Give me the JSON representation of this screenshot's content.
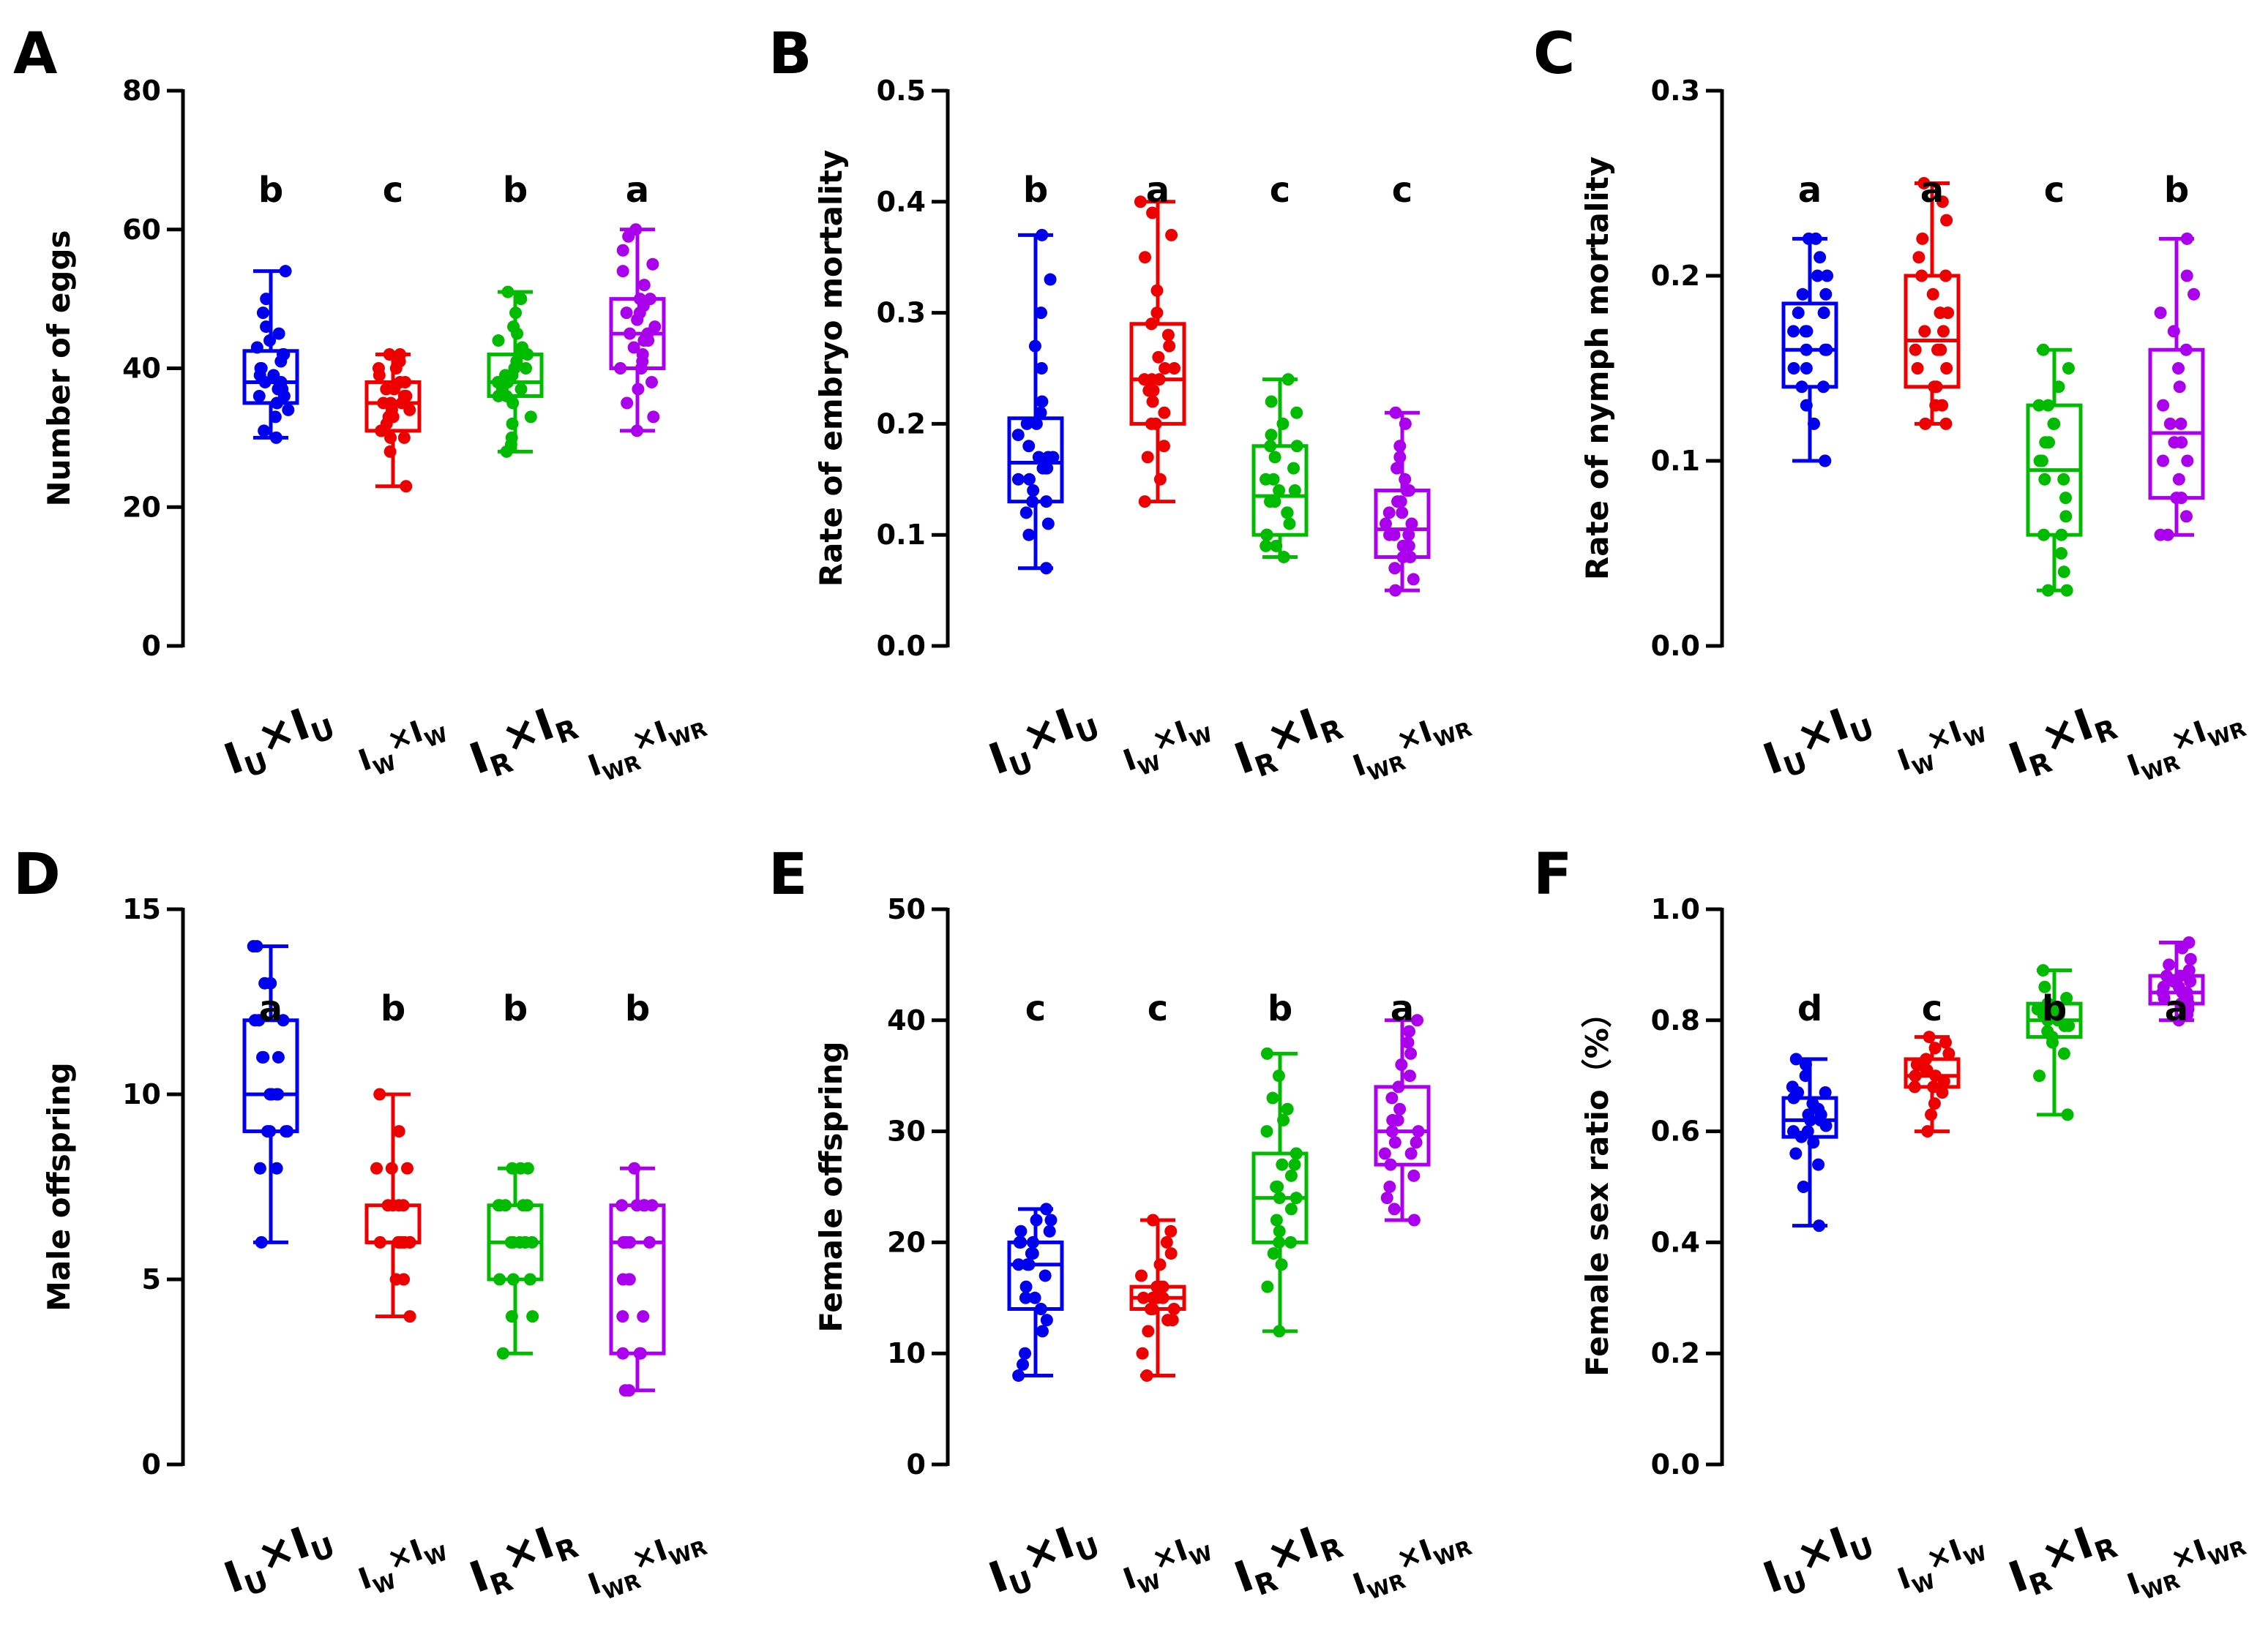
{
  "groups": [
    {
      "main": "I",
      "sub": "U",
      "mid": "×",
      "main2": "I",
      "sub2": "U",
      "style": "large"
    },
    {
      "main": "I",
      "sub": "W",
      "mid": "×",
      "main2": "I",
      "sub2": "W",
      "style": "small"
    },
    {
      "main": "I",
      "sub": "R",
      "mid": "×",
      "main2": "I",
      "sub2": "R",
      "style": "large"
    },
    {
      "main": "I",
      "sub": "WR",
      "mid": "×",
      "main2": "I",
      "sub2": "WR",
      "style": "small"
    }
  ],
  "colors": [
    "#0000ee",
    "#ee0000",
    "#00bb00",
    "#aa00ee"
  ],
  "chart_data": [
    {
      "panel": "A",
      "type": "box",
      "ylabel": "Number of eggs",
      "ylim": [
        0,
        80
      ],
      "yticks": [
        0,
        20,
        40,
        60,
        80
      ],
      "tick_labels": [
        "0",
        "20",
        "40",
        "60",
        "80"
      ],
      "categories": [
        "IU×IU",
        "IW×IW",
        "IR×IR",
        "IWR×IWR"
      ],
      "letters": [
        "b",
        "c",
        "b",
        "a"
      ],
      "series": [
        {
          "min": 30,
          "q1": 35,
          "median": 38,
          "q3": 42.5,
          "max": 54,
          "points": [
            30,
            31,
            33,
            34,
            35,
            35,
            36,
            36,
            37,
            37,
            38,
            38,
            38,
            39,
            39,
            40,
            40,
            41,
            42,
            42,
            43,
            44,
            45,
            46,
            48,
            50,
            54
          ]
        },
        {
          "min": 23,
          "q1": 31,
          "median": 35,
          "q3": 38,
          "max": 42,
          "points": [
            23,
            28,
            30,
            30,
            31,
            31,
            32,
            33,
            33,
            34,
            34,
            35,
            35,
            35,
            36,
            36,
            37,
            37,
            38,
            38,
            39,
            40,
            40,
            41,
            42,
            42
          ]
        },
        {
          "min": 28,
          "q1": 36,
          "median": 38,
          "q3": 42,
          "max": 51,
          "points": [
            28,
            29,
            30,
            32,
            33,
            35,
            36,
            36,
            37,
            37,
            38,
            38,
            38,
            39,
            39,
            40,
            40,
            41,
            42,
            42,
            43,
            44,
            45,
            46,
            48,
            50,
            51
          ]
        },
        {
          "min": 31,
          "q1": 40,
          "median": 45,
          "q3": 50,
          "max": 60,
          "points": [
            31,
            33,
            35,
            37,
            38,
            40,
            40,
            41,
            42,
            43,
            44,
            44,
            45,
            45,
            46,
            47,
            48,
            48,
            49,
            50,
            50,
            52,
            54,
            55,
            57,
            59,
            60
          ]
        }
      ]
    },
    {
      "panel": "B",
      "type": "box",
      "ylabel": "Rate of embryo mortality",
      "ylim": [
        0,
        0.5
      ],
      "yticks": [
        0,
        0.1,
        0.2,
        0.3,
        0.4,
        0.5
      ],
      "tick_labels": [
        "0.0",
        "0.1",
        "0.2",
        "0.3",
        "0.4",
        "0.5"
      ],
      "categories": [
        "IU×IU",
        "IW×IW",
        "IR×IR",
        "IWR×IWR"
      ],
      "letters": [
        "b",
        "a",
        "c",
        "c"
      ],
      "series": [
        {
          "min": 0.07,
          "q1": 0.13,
          "median": 0.165,
          "q3": 0.205,
          "max": 0.37,
          "points": [
            0.07,
            0.1,
            0.11,
            0.12,
            0.13,
            0.13,
            0.14,
            0.15,
            0.15,
            0.16,
            0.16,
            0.16,
            0.17,
            0.17,
            0.17,
            0.18,
            0.19,
            0.2,
            0.2,
            0.21,
            0.22,
            0.25,
            0.27,
            0.3,
            0.33,
            0.37
          ]
        },
        {
          "min": 0.13,
          "q1": 0.2,
          "median": 0.24,
          "q3": 0.29,
          "max": 0.4,
          "points": [
            0.13,
            0.15,
            0.17,
            0.18,
            0.2,
            0.2,
            0.21,
            0.22,
            0.23,
            0.23,
            0.24,
            0.24,
            0.24,
            0.25,
            0.25,
            0.26,
            0.27,
            0.28,
            0.29,
            0.3,
            0.32,
            0.35,
            0.37,
            0.39,
            0.4
          ]
        },
        {
          "min": 0.08,
          "q1": 0.1,
          "median": 0.135,
          "q3": 0.18,
          "max": 0.24,
          "points": [
            0.08,
            0.09,
            0.09,
            0.1,
            0.1,
            0.1,
            0.11,
            0.12,
            0.12,
            0.13,
            0.13,
            0.14,
            0.14,
            0.15,
            0.15,
            0.16,
            0.17,
            0.18,
            0.18,
            0.19,
            0.2,
            0.21,
            0.22,
            0.24
          ]
        },
        {
          "min": 0.05,
          "q1": 0.08,
          "median": 0.105,
          "q3": 0.14,
          "max": 0.21,
          "points": [
            0.05,
            0.06,
            0.07,
            0.08,
            0.08,
            0.09,
            0.09,
            0.1,
            0.1,
            0.1,
            0.11,
            0.11,
            0.12,
            0.12,
            0.13,
            0.13,
            0.14,
            0.14,
            0.15,
            0.16,
            0.17,
            0.18,
            0.2,
            0.21
          ]
        }
      ]
    },
    {
      "panel": "C",
      "type": "box",
      "ylabel": "Rate of nymph mortality",
      "ylim": [
        0,
        0.3
      ],
      "yticks": [
        0,
        0.1,
        0.2,
        0.3
      ],
      "tick_labels": [
        "0.0",
        "0.1",
        "0.2",
        "0.3"
      ],
      "categories": [
        "IU×IU",
        "IW×IW",
        "IR×IR",
        "IWR×IWR"
      ],
      "letters": [
        "a",
        "a",
        "c",
        "b"
      ],
      "series": [
        {
          "min": 0.1,
          "q1": 0.14,
          "median": 0.16,
          "q3": 0.185,
          "max": 0.22,
          "points": [
            0.1,
            0.1,
            0.12,
            0.13,
            0.14,
            0.14,
            0.15,
            0.15,
            0.16,
            0.16,
            0.16,
            0.17,
            0.17,
            0.17,
            0.18,
            0.18,
            0.19,
            0.19,
            0.2,
            0.2,
            0.21,
            0.22,
            0.22
          ]
        },
        {
          "min": 0.12,
          "q1": 0.14,
          "median": 0.165,
          "q3": 0.2,
          "max": 0.25,
          "points": [
            0.12,
            0.12,
            0.13,
            0.13,
            0.14,
            0.14,
            0.15,
            0.15,
            0.16,
            0.16,
            0.16,
            0.17,
            0.17,
            0.18,
            0.18,
            0.19,
            0.2,
            0.2,
            0.21,
            0.22,
            0.23,
            0.24,
            0.25
          ]
        },
        {
          "min": 0.03,
          "q1": 0.06,
          "median": 0.095,
          "q3": 0.13,
          "max": 0.16,
          "points": [
            0.03,
            0.03,
            0.04,
            0.05,
            0.06,
            0.06,
            0.07,
            0.08,
            0.09,
            0.09,
            0.1,
            0.1,
            0.11,
            0.11,
            0.12,
            0.12,
            0.13,
            0.13,
            0.14,
            0.15,
            0.16
          ]
        },
        {
          "min": 0.06,
          "q1": 0.08,
          "median": 0.115,
          "q3": 0.16,
          "max": 0.22,
          "points": [
            0.06,
            0.06,
            0.07,
            0.08,
            0.08,
            0.09,
            0.1,
            0.1,
            0.11,
            0.11,
            0.12,
            0.12,
            0.13,
            0.14,
            0.15,
            0.16,
            0.17,
            0.18,
            0.19,
            0.2,
            0.22
          ]
        }
      ]
    },
    {
      "panel": "D",
      "type": "box",
      "ylabel": "Male offspring",
      "ylim": [
        0,
        15
      ],
      "yticks": [
        0,
        5,
        10,
        15
      ],
      "tick_labels": [
        "0",
        "5",
        "10",
        "15"
      ],
      "categories": [
        "IU×IU",
        "IW×IW",
        "IR×IR",
        "IWR×IWR"
      ],
      "letters": [
        "a",
        "b",
        "b",
        "b"
      ],
      "series": [
        {
          "min": 6,
          "q1": 9,
          "median": 10,
          "q3": 12,
          "max": 14,
          "points": [
            6,
            8,
            8,
            9,
            9,
            9,
            9,
            10,
            10,
            10,
            10,
            10,
            10,
            11,
            11,
            11,
            12,
            12,
            12,
            13,
            13,
            14,
            14
          ]
        },
        {
          "min": 4,
          "q1": 6,
          "median": 6,
          "q3": 7,
          "max": 10,
          "points": [
            4,
            5,
            5,
            6,
            6,
            6,
            6,
            6,
            6,
            6,
            6,
            7,
            7,
            7,
            7,
            8,
            8,
            8,
            9,
            10
          ]
        },
        {
          "min": 3,
          "q1": 5,
          "median": 6,
          "q3": 7,
          "max": 8,
          "points": [
            3,
            4,
            4,
            5,
            5,
            5,
            6,
            6,
            6,
            6,
            6,
            6,
            7,
            7,
            7,
            7,
            7,
            8,
            8,
            8
          ]
        },
        {
          "min": 2,
          "q1": 3,
          "median": 6,
          "q3": 7,
          "max": 8,
          "points": [
            2,
            2,
            3,
            3,
            3,
            4,
            4,
            5,
            5,
            5,
            6,
            6,
            6,
            6,
            6,
            7,
            7,
            7,
            7,
            7,
            8
          ]
        }
      ]
    },
    {
      "panel": "E",
      "type": "box",
      "ylabel": "Female offspring",
      "ylim": [
        0,
        50
      ],
      "yticks": [
        0,
        10,
        20,
        30,
        40,
        50
      ],
      "tick_labels": [
        "0",
        "10",
        "20",
        "30",
        "40",
        "50"
      ],
      "categories": [
        "IU×IU",
        "IW×IW",
        "IR×IR",
        "IWR×IWR"
      ],
      "letters": [
        "c",
        "c",
        "b",
        "a"
      ],
      "series": [
        {
          "min": 8,
          "q1": 14,
          "median": 18,
          "q3": 20,
          "max": 23,
          "points": [
            8,
            9,
            10,
            12,
            13,
            14,
            15,
            15,
            16,
            17,
            18,
            18,
            18,
            19,
            19,
            20,
            20,
            20,
            21,
            21,
            22,
            22,
            23
          ]
        },
        {
          "min": 8,
          "q1": 14,
          "median": 15,
          "q3": 16,
          "max": 22,
          "points": [
            8,
            10,
            12,
            13,
            13,
            14,
            14,
            14,
            15,
            15,
            15,
            15,
            15,
            16,
            16,
            16,
            17,
            18,
            19,
            20,
            21,
            22
          ]
        },
        {
          "min": 12,
          "q1": 20,
          "median": 24,
          "q3": 28,
          "max": 37,
          "points": [
            12,
            16,
            18,
            19,
            20,
            20,
            21,
            22,
            23,
            24,
            24,
            25,
            25,
            26,
            27,
            27,
            28,
            28,
            30,
            31,
            32,
            33,
            35,
            37
          ]
        },
        {
          "min": 22,
          "q1": 27,
          "median": 30,
          "q3": 34,
          "max": 40,
          "points": [
            22,
            23,
            24,
            25,
            26,
            27,
            28,
            28,
            29,
            29,
            30,
            30,
            31,
            31,
            32,
            33,
            34,
            35,
            36,
            37,
            38,
            39,
            40
          ]
        }
      ]
    },
    {
      "panel": "F",
      "type": "box",
      "ylabel": "Female sex ratio（%）",
      "ylim": [
        0,
        1
      ],
      "yticks": [
        0,
        0.2,
        0.4,
        0.6,
        0.8,
        1
      ],
      "tick_labels": [
        "0.0",
        "0.2",
        "0.4",
        "0.6",
        "0.8",
        "1.0"
      ],
      "categories": [
        "IU×IU",
        "IW×IW",
        "IR×IR",
        "IWR×IWR"
      ],
      "letters": [
        "d",
        "c",
        "b",
        "a"
      ],
      "series": [
        {
          "min": 0.43,
          "q1": 0.59,
          "median": 0.62,
          "q3": 0.66,
          "max": 0.73,
          "points": [
            0.43,
            0.5,
            0.54,
            0.56,
            0.58,
            0.59,
            0.6,
            0.6,
            0.61,
            0.62,
            0.62,
            0.63,
            0.63,
            0.64,
            0.65,
            0.66,
            0.67,
            0.67,
            0.68,
            0.7,
            0.72,
            0.73
          ]
        },
        {
          "min": 0.6,
          "q1": 0.68,
          "median": 0.7,
          "q3": 0.73,
          "max": 0.77,
          "points": [
            0.6,
            0.63,
            0.65,
            0.67,
            0.68,
            0.68,
            0.69,
            0.7,
            0.7,
            0.7,
            0.71,
            0.71,
            0.72,
            0.72,
            0.73,
            0.74,
            0.75,
            0.76,
            0.77
          ]
        },
        {
          "min": 0.63,
          "q1": 0.77,
          "median": 0.8,
          "q3": 0.83,
          "max": 0.89,
          "points": [
            0.63,
            0.7,
            0.74,
            0.76,
            0.77,
            0.78,
            0.79,
            0.79,
            0.8,
            0.8,
            0.81,
            0.81,
            0.82,
            0.82,
            0.82,
            0.83,
            0.83,
            0.84,
            0.86,
            0.89
          ]
        },
        {
          "min": 0.8,
          "q1": 0.83,
          "median": 0.85,
          "q3": 0.88,
          "max": 0.94,
          "points": [
            0.8,
            0.81,
            0.82,
            0.83,
            0.83,
            0.84,
            0.84,
            0.85,
            0.85,
            0.85,
            0.86,
            0.86,
            0.87,
            0.87,
            0.88,
            0.88,
            0.89,
            0.9,
            0.91,
            0.93,
            0.94
          ]
        }
      ]
    }
  ]
}
